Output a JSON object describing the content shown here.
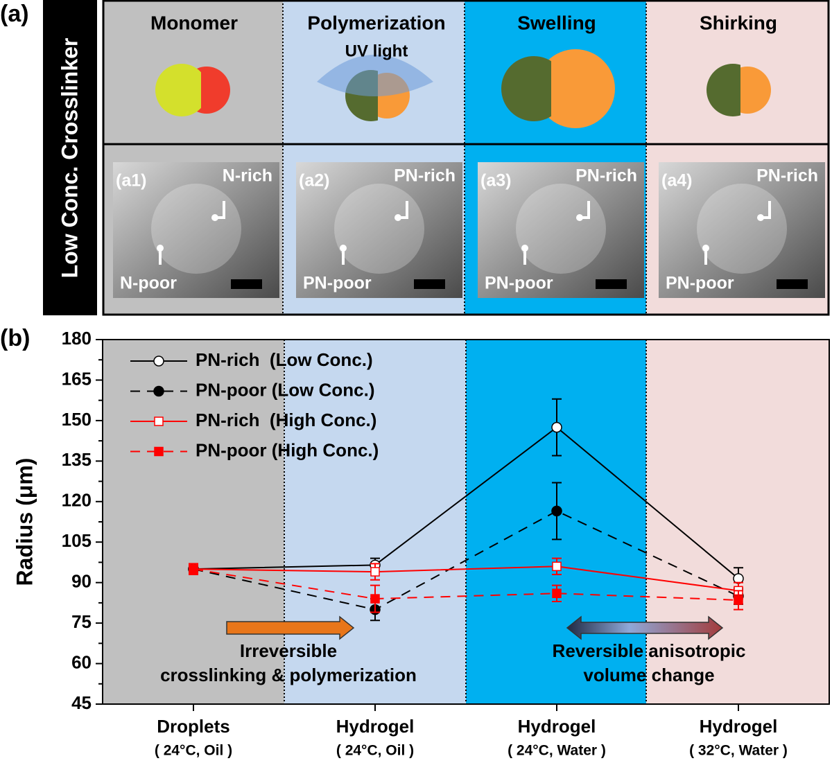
{
  "panel_a": {
    "label": "(a)",
    "row_label": "Low Conc. Crosslinker",
    "columns": [
      "Monomer",
      "Polymerization",
      "Swelling",
      "Shirking"
    ],
    "uv_label": "UV light",
    "micrographs": [
      {
        "label": "(a1)",
        "rich": "N-rich",
        "poor": "N-poor"
      },
      {
        "label": "(a2)",
        "rich": "PN-rich",
        "poor": "PN-poor"
      },
      {
        "label": "(a3)",
        "rich": "PN-rich",
        "poor": "PN-poor"
      },
      {
        "label": "(a4)",
        "rich": "PN-rich",
        "poor": "PN-poor"
      }
    ]
  },
  "chart_data": {
    "type": "line",
    "panel_label": "(b)",
    "y_label": "Radius (μm)",
    "categories": [
      "Droplets",
      "Hydrogel",
      "Hydrogel",
      "Hydrogel"
    ],
    "category_conditions": [
      "( 24°C, Oil )",
      "( 24°C, Oil )",
      "( 24°C, Water )",
      "( 32°C, Water )"
    ],
    "band_colors": [
      "#c0c0c0",
      "#c5d8ef",
      "#00b0f0",
      "#f2dcdb"
    ],
    "ylim": [
      45,
      180
    ],
    "yticks": [
      45,
      60,
      75,
      90,
      105,
      120,
      135,
      150,
      165,
      180
    ],
    "legend": "upper left",
    "series": [
      {
        "name": "PN-rich  (Low Conc.)",
        "color": "#000000",
        "marker": "circle",
        "filled": false,
        "dashed": false,
        "values": [
          95,
          96.5,
          147.5,
          91.5
        ],
        "errors": [
          1,
          2.5,
          10.5,
          4
        ]
      },
      {
        "name": "PN-poor (Low Conc.)",
        "color": "#000000",
        "marker": "circle",
        "filled": true,
        "dashed": true,
        "values": [
          95,
          80,
          116.5,
          85
        ],
        "errors": [
          1,
          4,
          10.5,
          3
        ]
      },
      {
        "name": "PN-rich  (High Conc.)",
        "color": "#ff0000",
        "marker": "square",
        "filled": false,
        "dashed": false,
        "values": [
          95,
          94,
          96,
          87
        ],
        "errors": [
          1.5,
          3,
          3,
          3
        ]
      },
      {
        "name": "PN-poor (High Conc.)",
        "color": "#ff0000",
        "marker": "square",
        "filled": true,
        "dashed": true,
        "values": [
          95,
          84,
          86,
          83.5
        ],
        "errors": [
          2,
          5,
          3,
          3.5
        ]
      }
    ],
    "annotations": [
      [
        "Irreversible",
        "crosslinking & polymerization"
      ],
      [
        "Reversible anisotropic",
        "volume change"
      ]
    ]
  }
}
